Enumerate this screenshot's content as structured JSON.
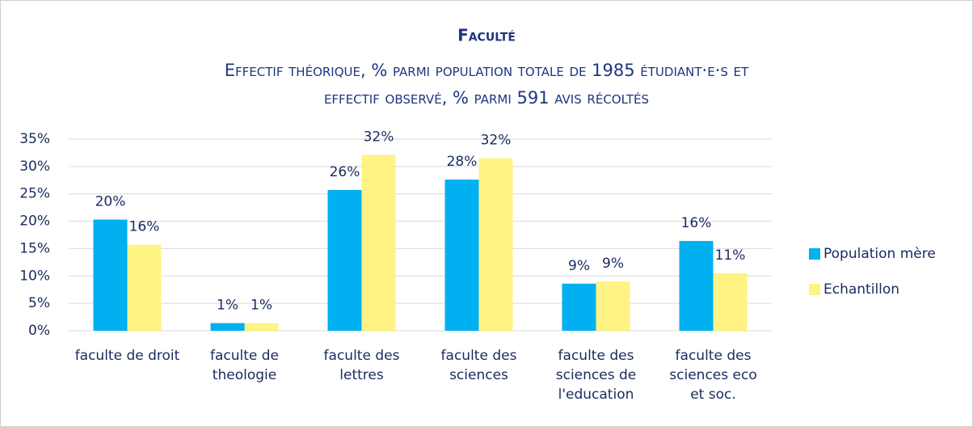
{
  "chart_data": {
    "type": "bar",
    "title": "Faculté",
    "subtitle": [
      "Effectif théorique, % parmi population totale de 1985 étudiant·e·s et",
      "effectif observé, % parmi 591 avis récoltés"
    ],
    "categories": [
      "faculte de droit",
      "faculte de theologie",
      "faculte des lettres",
      "faculte des sciences",
      "faculte des sciences de l'education",
      "faculte des sciences eco et soc."
    ],
    "series": [
      {
        "name": "Population mère",
        "color": "#00b0f0",
        "values": [
          20.3,
          1.4,
          25.7,
          27.6,
          8.6,
          16.4
        ],
        "value_labels": [
          "20%",
          "1%",
          "26%",
          "28%",
          "9%",
          "16%"
        ]
      },
      {
        "name": "Echantillon",
        "color": "#fff383",
        "values": [
          15.7,
          1.4,
          32.1,
          31.5,
          9.0,
          10.5
        ],
        "value_labels": [
          "16%",
          "1%",
          "32%",
          "32%",
          "9%",
          "11%"
        ]
      }
    ],
    "ylim": [
      0,
      35
    ],
    "yticks": [
      {
        "value": 0,
        "label": "0%"
      },
      {
        "value": 5,
        "label": "5%"
      },
      {
        "value": 10,
        "label": "10%"
      },
      {
        "value": 15,
        "label": "15%"
      },
      {
        "value": 20,
        "label": "20%"
      },
      {
        "value": 25,
        "label": "25%"
      },
      {
        "value": 30,
        "label": "30%"
      },
      {
        "value": 35,
        "label": "35%"
      }
    ],
    "grid": true,
    "legend": "right"
  }
}
